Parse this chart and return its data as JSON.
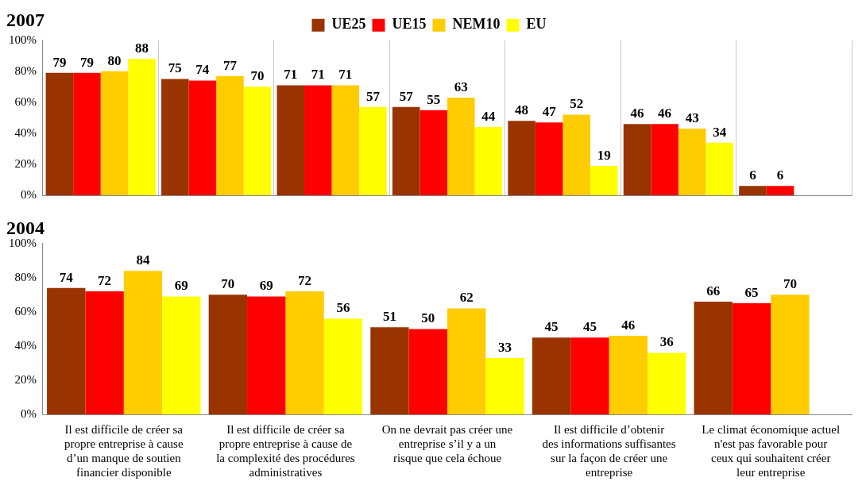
{
  "chart_data": [
    {
      "type": "bar",
      "title": "2007",
      "categories": [
        null,
        null,
        null,
        null,
        null,
        null,
        null
      ],
      "series": [
        {
          "name": "UE25",
          "color": "#993300",
          "values": [
            79,
            75,
            71,
            57,
            48,
            46,
            6
          ]
        },
        {
          "name": "UE15",
          "color": "#ff0000",
          "values": [
            79,
            74,
            71,
            55,
            47,
            46,
            6
          ]
        },
        {
          "name": "NEM10",
          "color": "#ffcc00",
          "values": [
            80,
            77,
            71,
            63,
            52,
            43,
            null
          ]
        },
        {
          "name": "EU",
          "color": "#ffff00",
          "values": [
            88,
            70,
            57,
            44,
            19,
            34,
            null
          ]
        }
      ],
      "ylim": [
        0,
        100
      ],
      "yticks": [
        {
          "value": 0,
          "label": "0%"
        },
        {
          "value": 20,
          "label": "20%"
        },
        {
          "value": 40,
          "label": "40%"
        },
        {
          "value": 60,
          "label": "60%"
        },
        {
          "value": 80,
          "label": "80%"
        },
        {
          "value": 100,
          "label": "100%"
        }
      ],
      "grid": "x",
      "legend": "top",
      "data_labels": true
    },
    {
      "type": "bar",
      "title": "2004",
      "categories": [
        "Il est difficile de créer sa propre entreprise à cause d’un manque de soutien financier disponible",
        "Il est difficile de créer sa propre entreprise à cause de la complexité des procédures administratives",
        "On ne devrait pas créer une entreprise s’il y a un risque que cela échoue",
        "Il est difficile d’obtenir des informations suffisantes sur la façon de créer une entreprise",
        "Le climat économique actuel n'est pas favorable pour ceux qui souhaitent créer leur entreprise"
      ],
      "series": [
        {
          "color": "#993300",
          "values": [
            74,
            70,
            51,
            45,
            66
          ]
        },
        {
          "color": "#ff0000",
          "values": [
            72,
            69,
            50,
            45,
            65
          ]
        },
        {
          "color": "#ffcc00",
          "values": [
            84,
            72,
            62,
            46,
            70
          ]
        },
        {
          "color": "#ffff00",
          "values": [
            69,
            56,
            33,
            36,
            null
          ]
        }
      ],
      "ylim": [
        0,
        100
      ],
      "yticks": [
        {
          "value": 0,
          "label": "0%"
        },
        {
          "value": 20,
          "label": "20%"
        },
        {
          "value": 40,
          "label": "40%"
        },
        {
          "value": 60,
          "label": "60%"
        },
        {
          "value": 80,
          "label": "80%"
        },
        {
          "value": 100,
          "label": "100%"
        }
      ],
      "data_labels": true
    }
  ]
}
